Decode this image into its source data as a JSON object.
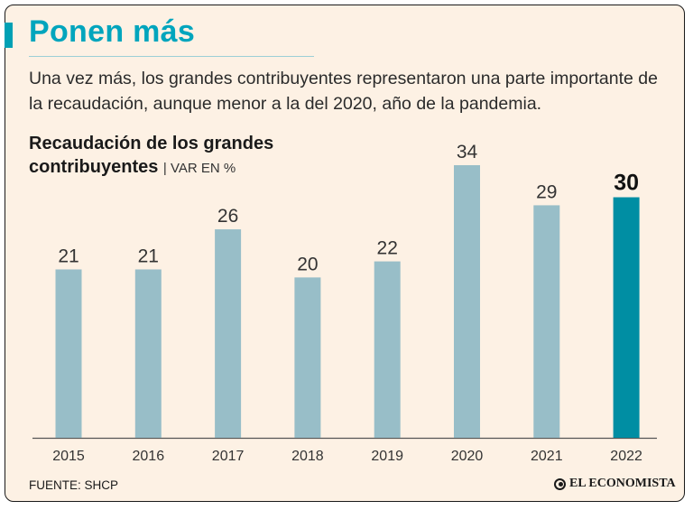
{
  "header": {
    "title": "Ponen más",
    "subtitle": "Una vez más, los grandes contribuyentes representaron una parte importante de la recaudación, aunque menor a la del 2020, año de la pandemia."
  },
  "chart_data": {
    "type": "bar",
    "title_line1": "Recaudación de los grandes",
    "title_line2": "contribuyentes",
    "unit": "| VAR EN %",
    "categories": [
      "2015",
      "2016",
      "2017",
      "2018",
      "2019",
      "2020",
      "2021",
      "2022"
    ],
    "values": [
      21,
      21,
      26,
      20,
      22,
      34,
      29,
      30
    ],
    "highlight_index": 7,
    "ylim": [
      0,
      34
    ],
    "grid": false,
    "colors": {
      "bar": "#98bec8",
      "highlight": "#008ea3",
      "axis": "#555555"
    }
  },
  "footer": {
    "source": "FUENTE: SHCP",
    "brand": "EL ECONOMISTA"
  }
}
